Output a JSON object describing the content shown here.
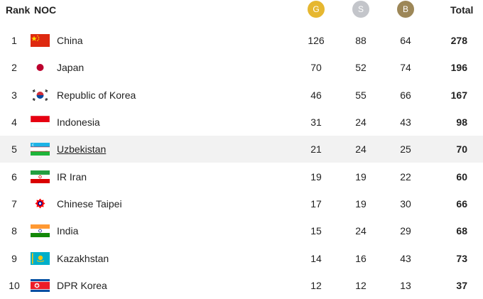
{
  "header": {
    "rank_label": "Rank",
    "noc_label": "NOC",
    "gold_label": "G",
    "silver_label": "S",
    "bronze_label": "B",
    "total_label": "Total"
  },
  "colors": {
    "gold": "#e6b730",
    "silver": "#c3c5ca",
    "bronze": "#9d8758",
    "highlight_row": "#f2f2f2"
  },
  "rows": [
    {
      "rank": "1",
      "flag": "china-flag-icon",
      "name": "China",
      "gold": "126",
      "silver": "88",
      "bronze": "64",
      "total": "278"
    },
    {
      "rank": "2",
      "flag": "japan-flag-icon",
      "name": "Japan",
      "gold": "70",
      "silver": "52",
      "bronze": "74",
      "total": "196"
    },
    {
      "rank": "3",
      "flag": "korea-flag-icon",
      "name": "Republic of Korea",
      "gold": "46",
      "silver": "55",
      "bronze": "66",
      "total": "167"
    },
    {
      "rank": "4",
      "flag": "indonesia-flag-icon",
      "name": "Indonesia",
      "gold": "31",
      "silver": "24",
      "bronze": "43",
      "total": "98"
    },
    {
      "rank": "5",
      "flag": "uzbekistan-flag-icon",
      "name": "Uzbekistan",
      "gold": "21",
      "silver": "24",
      "bronze": "25",
      "total": "70"
    },
    {
      "rank": "6",
      "flag": "iran-flag-icon",
      "name": "IR Iran",
      "gold": "19",
      "silver": "19",
      "bronze": "22",
      "total": "60"
    },
    {
      "rank": "7",
      "flag": "chinese-taipei-flag-icon",
      "name": "Chinese Taipei",
      "gold": "17",
      "silver": "19",
      "bronze": "30",
      "total": "66"
    },
    {
      "rank": "8",
      "flag": "india-flag-icon",
      "name": "India",
      "gold": "15",
      "silver": "24",
      "bronze": "29",
      "total": "68"
    },
    {
      "rank": "9",
      "flag": "kazakhstan-flag-icon",
      "name": "Kazakhstan",
      "gold": "14",
      "silver": "16",
      "bronze": "43",
      "total": "73"
    },
    {
      "rank": "10",
      "flag": "dpr-korea-flag-icon",
      "name": "DPR Korea",
      "gold": "12",
      "silver": "12",
      "bronze": "13",
      "total": "37"
    }
  ]
}
